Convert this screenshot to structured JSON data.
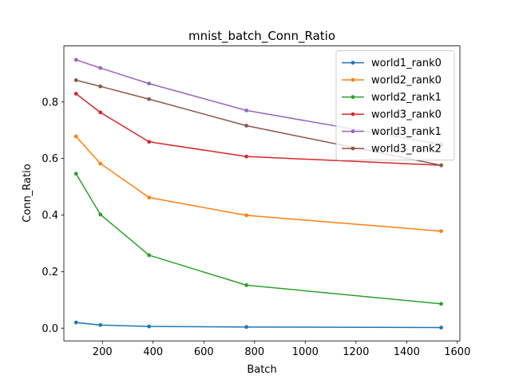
{
  "chart_data": {
    "type": "line",
    "title": "mnist_batch_Conn_Ratio",
    "xlabel": "Batch",
    "ylabel": "Conn_Ratio",
    "xlim": [
      48,
      1610
    ],
    "ylim": [
      -0.045,
      0.998
    ],
    "xticks": [
      200,
      400,
      600,
      800,
      1000,
      1200,
      1400,
      1600
    ],
    "yticks": [
      0.0,
      0.2,
      0.4,
      0.6,
      0.8
    ],
    "ytick_labels": [
      "0.0",
      "0.2",
      "0.4",
      "0.6",
      "0.8"
    ],
    "grid": false,
    "legend_position": "top-right",
    "x": [
      96,
      192,
      384,
      768,
      1536
    ],
    "series": [
      {
        "name": "world1_rank0",
        "color": "#1f77b4",
        "values": [
          0.02,
          0.011,
          0.006,
          0.004,
          0.002
        ]
      },
      {
        "name": "world2_rank0",
        "color": "#ff7f0e",
        "values": [
          0.678,
          0.582,
          0.462,
          0.399,
          0.343
        ]
      },
      {
        "name": "world2_rank1",
        "color": "#2ca02c",
        "values": [
          0.546,
          0.402,
          0.258,
          0.152,
          0.086
        ]
      },
      {
        "name": "world3_rank0",
        "color": "#d62728",
        "values": [
          0.829,
          0.763,
          0.659,
          0.607,
          0.576
        ]
      },
      {
        "name": "world3_rank1",
        "color": "#9467bd",
        "values": [
          0.949,
          0.92,
          0.865,
          0.77,
          0.65
        ]
      },
      {
        "name": "world3_rank2",
        "color": "#8c564b",
        "values": [
          0.877,
          0.855,
          0.81,
          0.716,
          0.576
        ]
      }
    ]
  }
}
